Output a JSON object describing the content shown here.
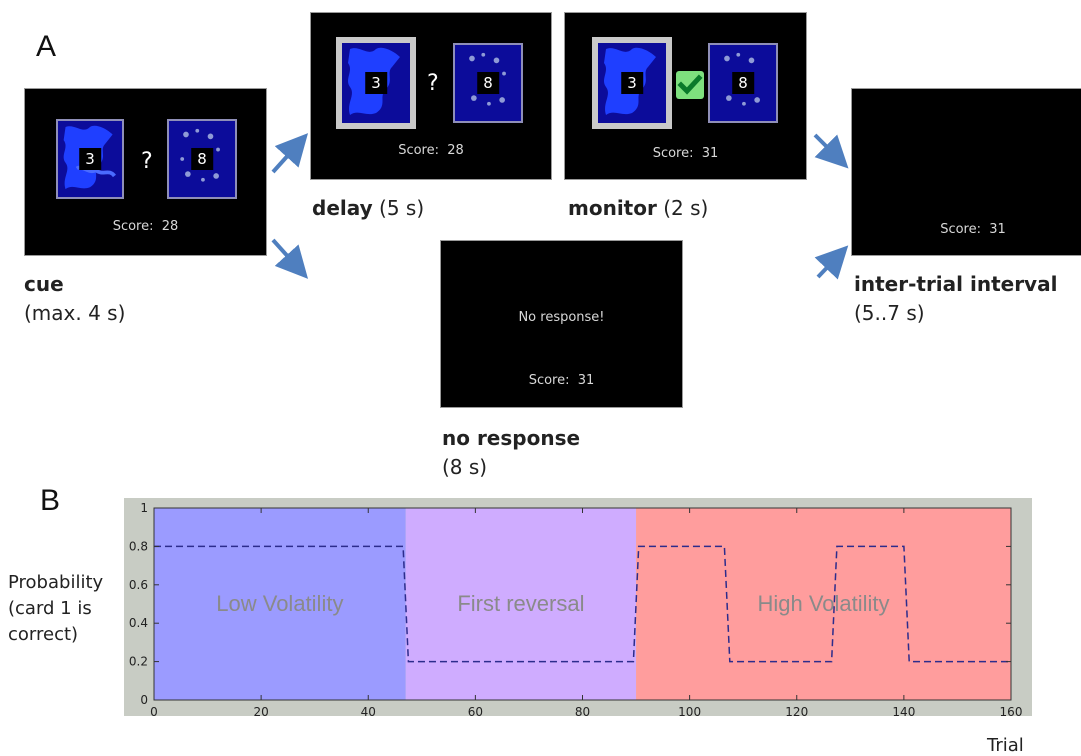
{
  "panel_a": {
    "letter": "A",
    "screens": {
      "cue": {
        "card1": "3",
        "card2": "8",
        "question": "?",
        "score": "Score:  28",
        "title": "cue",
        "subtitle": "(max. 4 s)"
      },
      "delay": {
        "card1": "3",
        "card2": "8",
        "question": "?",
        "score": "Score:  28",
        "title": "delay",
        "duration": " (5 s)"
      },
      "monitor": {
        "card1": "3",
        "card2": "8",
        "score": "Score:  31",
        "title": "monitor",
        "duration": " (2 s)"
      },
      "no_response": {
        "message": "No response!",
        "score": "Score:  31",
        "title": "no response",
        "subtitle": "(8 s)"
      },
      "iti": {
        "score": "Score:  31",
        "title": "inter-trial interval",
        "subtitle": "(5..7 s)"
      }
    }
  },
  "panel_b": {
    "letter": "B"
  },
  "chart_data": {
    "type": "line",
    "ylabel": [
      "Probability",
      "(card 1 is",
      "correct)"
    ],
    "xlabel": "Trial",
    "xlim": [
      0,
      160
    ],
    "ylim": [
      0,
      1
    ],
    "xticks": [
      0,
      20,
      40,
      60,
      80,
      100,
      120,
      140,
      160
    ],
    "yticks": [
      0,
      0.2,
      0.4,
      0.6,
      0.8,
      1
    ],
    "grid": false,
    "regions": [
      {
        "label": "Low Volatility",
        "x0": 0,
        "x1": 47,
        "color": "#9b9bff"
      },
      {
        "label": "First reversal",
        "x0": 47,
        "x1": 90,
        "color": "#cfacff"
      },
      {
        "label": "High Volatility",
        "x0": 90,
        "x1": 160,
        "color": "#ff9d9d"
      }
    ],
    "series": [
      {
        "line_style": "dashed",
        "color": "#2c2c8c",
        "points": [
          [
            0,
            0.8
          ],
          [
            46.5,
            0.8
          ],
          [
            47.5,
            0.2
          ],
          [
            89.5,
            0.2
          ],
          [
            90.5,
            0.8
          ],
          [
            106.5,
            0.8
          ],
          [
            107.5,
            0.2
          ],
          [
            126.5,
            0.2
          ],
          [
            127.5,
            0.8
          ],
          [
            140,
            0.8
          ],
          [
            141,
            0.2
          ],
          [
            160,
            0.2
          ]
        ]
      }
    ]
  }
}
